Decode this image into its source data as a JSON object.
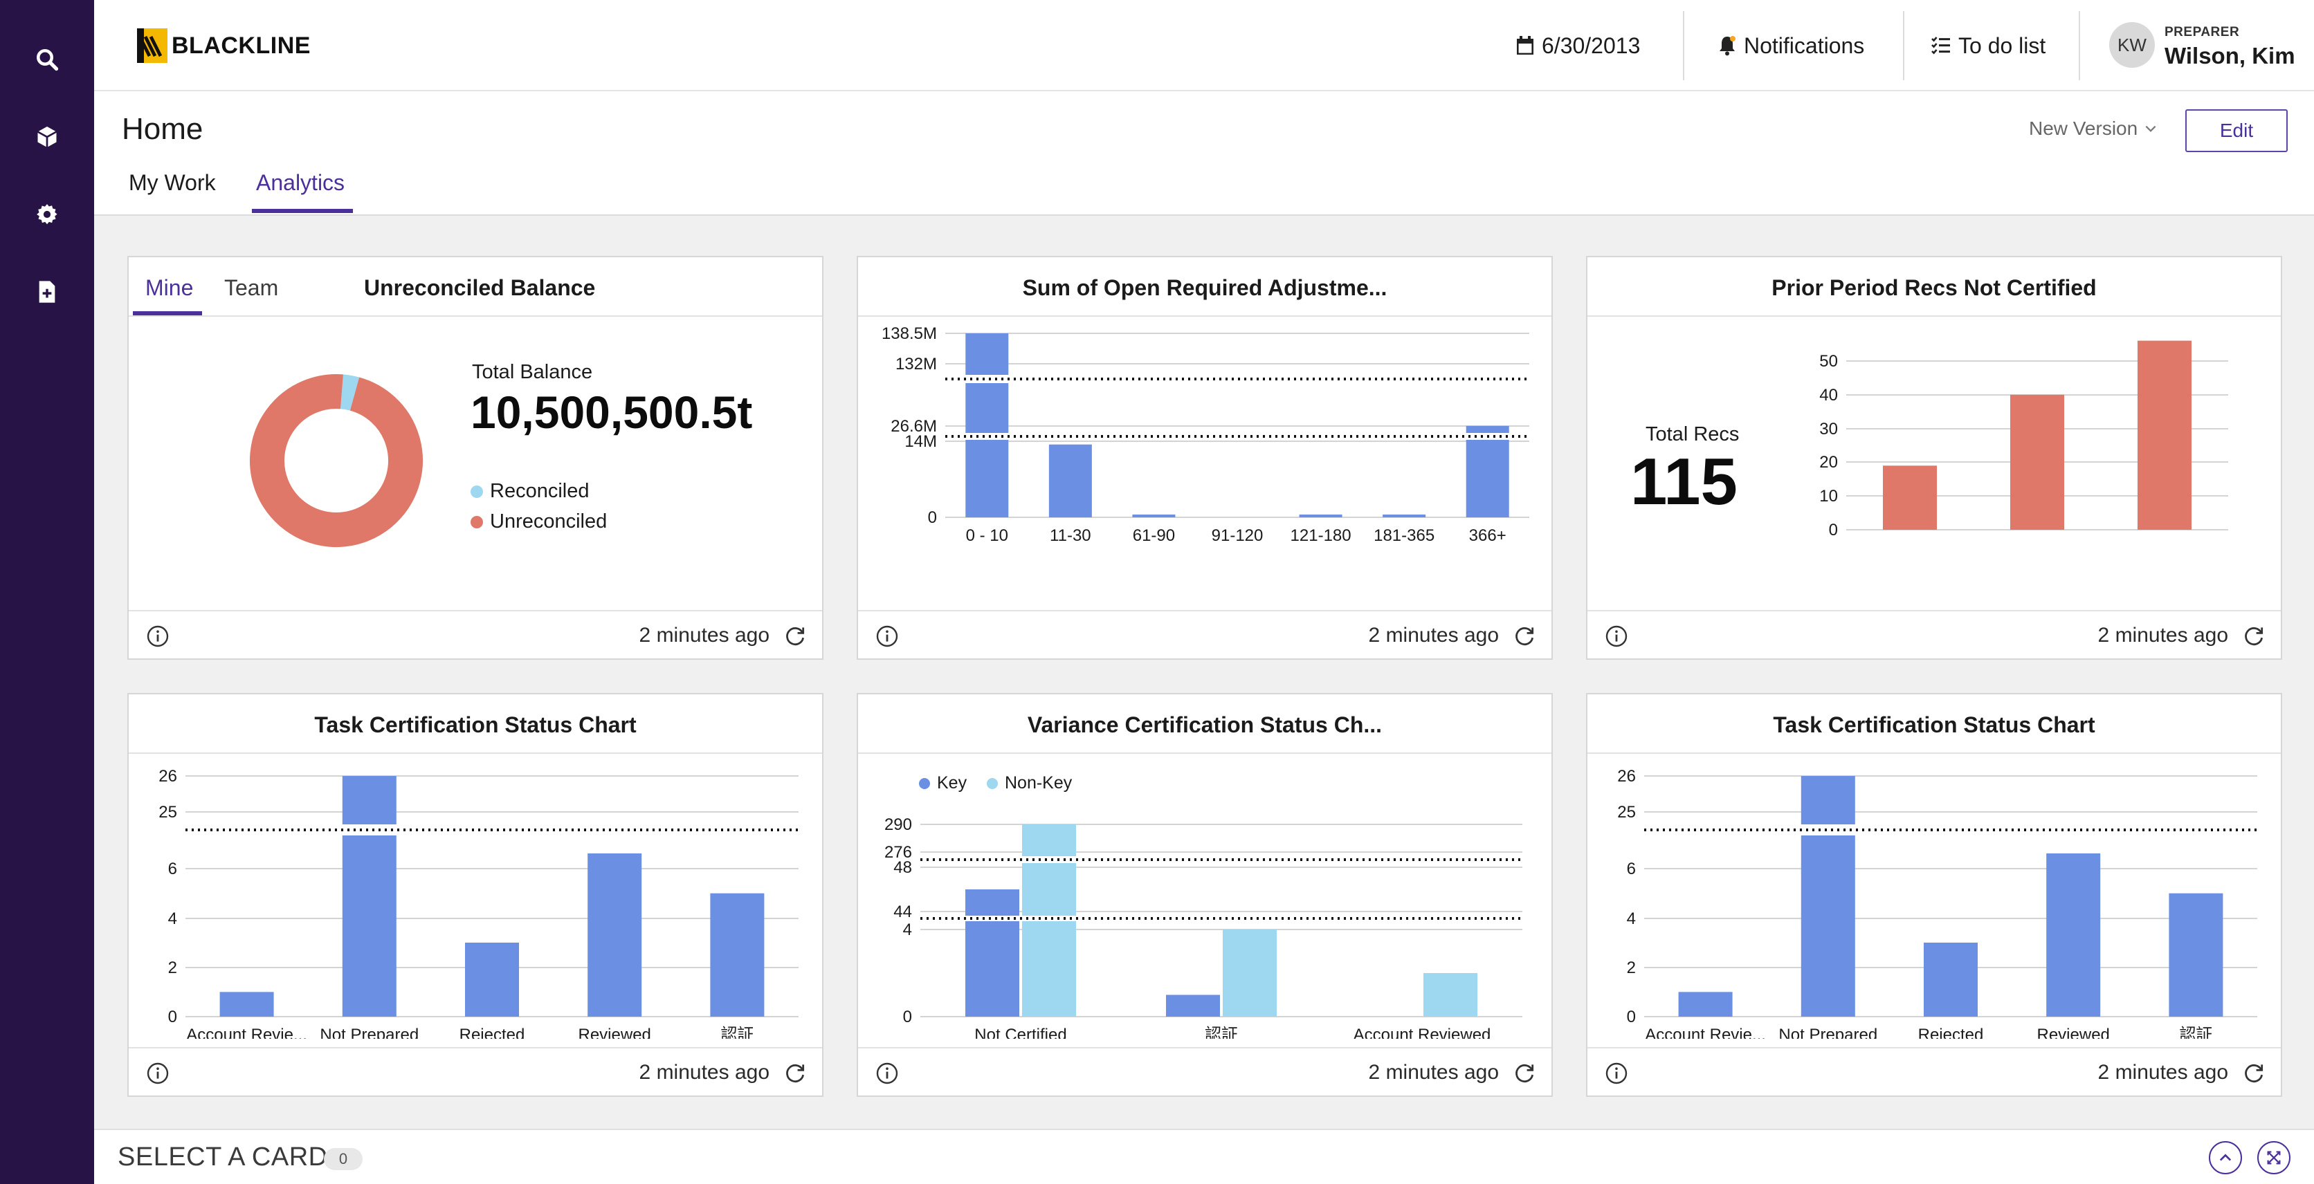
{
  "app": {
    "logo_text": "BLACKLINE"
  },
  "header": {
    "date": "6/30/2013",
    "notifications_label": "Notifications",
    "todo_label": "To do list",
    "user": {
      "initials": "KW",
      "role": "PREPARER",
      "name": "Wilson, Kim"
    }
  },
  "sidebar": {
    "icons": [
      "search-icon",
      "cube-icon",
      "gear-icon",
      "add-document-icon"
    ]
  },
  "page": {
    "title": "Home",
    "tabs": [
      {
        "label": "My Work",
        "active": false
      },
      {
        "label": "Analytics",
        "active": true
      }
    ],
    "new_version_label": "New Version",
    "edit_label": "Edit"
  },
  "colors": {
    "accent": "#4b2f9a",
    "rail": "#271345",
    "bar_blue": "#6b8fe3",
    "bar_light": "#9dd8f0",
    "bar_red": "#df7868"
  },
  "cards": [
    {
      "title": "Unreconciled Balance",
      "subtabs": [
        {
          "label": "Mine",
          "active": true
        },
        {
          "label": "Team",
          "active": false
        }
      ],
      "total_label": "Total Balance",
      "total_value": "10,500,500.5t",
      "legend": [
        {
          "label": "Reconciled",
          "color": "#9dd8f0"
        },
        {
          "label": "Unreconciled",
          "color": "#df7868"
        }
      ],
      "updated": "2 minutes ago"
    },
    {
      "title": "Sum of Open Required Adjustme...",
      "updated": "2 minutes ago"
    },
    {
      "title": "Prior Period Recs Not Certified",
      "total_label": "Total Recs",
      "total_value": "115",
      "updated": "2 minutes ago"
    },
    {
      "title": "Task Certification Status Chart",
      "updated": "2 minutes ago"
    },
    {
      "title": "Variance Certification Status Ch...",
      "legend": [
        {
          "label": "Key",
          "color": "#6b8fe3"
        },
        {
          "label": "Non-Key",
          "color": "#9dd8f0"
        }
      ],
      "updated": "2 minutes ago"
    },
    {
      "title": "Task Certification Status Chart",
      "updated": "2 minutes ago"
    }
  ],
  "bottom": {
    "select_label": "SELECT A CARD",
    "count": "0"
  },
  "chart_data": [
    {
      "type": "pie",
      "title": "Unreconciled Balance",
      "categories": [
        "Reconciled",
        "Unreconciled"
      ],
      "values": [
        3,
        97
      ]
    },
    {
      "type": "bar",
      "title": "Sum of Open Required Adjustme...",
      "categories": [
        "0 - 10",
        "11-30",
        "61-90",
        "91-120",
        "121-180",
        "181-365",
        "366+"
      ],
      "values": [
        138.5,
        13.4,
        0.3,
        0,
        0.4,
        0.4,
        26.8
      ],
      "y_ticks": [
        "0",
        "14M",
        "26.6M",
        "132M",
        "138.5M"
      ],
      "axis_breaks": true
    },
    {
      "type": "bar",
      "title": "Prior Period Recs Not Certified",
      "categories": [
        "",
        "",
        ""
      ],
      "values": [
        19,
        40,
        56
      ],
      "ylim": [
        0,
        56
      ],
      "y_ticks": [
        "0",
        "10",
        "20",
        "30",
        "40",
        "50"
      ]
    },
    {
      "type": "bar",
      "title": "Task Certification Status Chart",
      "categories": [
        "Account Revie...",
        "Not Prepared",
        "Rejected",
        "Reviewed",
        "認証"
      ],
      "values": [
        1,
        26,
        3,
        7,
        5
      ],
      "y_ticks": [
        "0",
        "2",
        "4",
        "6",
        "25",
        "26"
      ],
      "axis_breaks": true
    },
    {
      "type": "bar",
      "title": "Variance Certification Status Ch...",
      "categories": [
        "Not Certified",
        "認証",
        "Account Reviewed"
      ],
      "series": [
        {
          "name": "Key",
          "values": [
            46,
            1,
            0
          ]
        },
        {
          "name": "Non-Key",
          "values": [
            290,
            4,
            2
          ]
        }
      ],
      "y_ticks": [
        "0",
        "4",
        "44",
        "48",
        "276",
        "290"
      ],
      "axis_breaks": true
    },
    {
      "type": "bar",
      "title": "Task Certification Status Chart",
      "categories": [
        "Account Revie...",
        "Not Prepared",
        "Rejected",
        "Reviewed",
        "認証"
      ],
      "values": [
        1,
        26,
        3,
        7,
        5
      ],
      "y_ticks": [
        "0",
        "2",
        "4",
        "6",
        "25",
        "26"
      ],
      "axis_breaks": true
    }
  ]
}
